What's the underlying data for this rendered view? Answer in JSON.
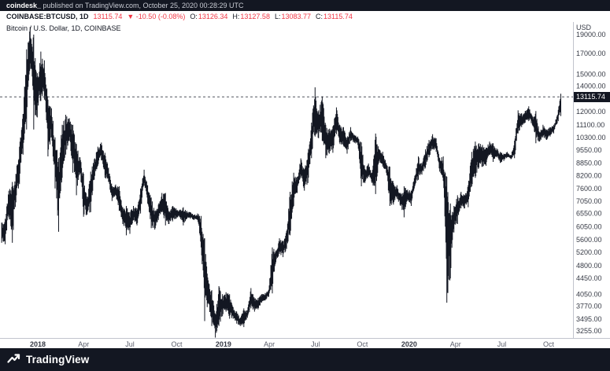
{
  "attribution_bar": {
    "username": "coindesk_",
    "text": " published on TradingView.com, October 25, 2020 00:28:29 UTC"
  },
  "symbol_bar": {
    "symbol": "COINBASE:BTCUSD, 1D",
    "last_price": "13115.74",
    "change": "▼ -10.50 (-0.08%)",
    "ohlc": [
      {
        "label": "O:",
        "value": "13126.34"
      },
      {
        "label": "H:",
        "value": "13127.58"
      },
      {
        "label": "L:",
        "value": "13083.77"
      },
      {
        "label": "C:",
        "value": "13115.74"
      }
    ]
  },
  "chart": {
    "legend": "Bitcoin / U.S. Dollar, 1D, COINBASE",
    "axis_unit": "USD",
    "price_badge": "13115.74",
    "colors": {
      "bars": "#131722",
      "down_red": "#f23645",
      "badge_bg": "#131722",
      "axis_text": "#363a45",
      "dashed_line": "#50535e",
      "dark_bar_bg": "#131722"
    }
  },
  "footer": {
    "brand": "TradingView"
  },
  "chart_data": {
    "type": "bar",
    "title": "Bitcoin / U.S. Dollar, 1D, COINBASE",
    "scale": "log",
    "last_price": 13115.74,
    "ylim": [
      3104,
      20585
    ],
    "grid": false,
    "y_ticks": [
      19000,
      17000,
      15000,
      14000,
      13000,
      12000,
      11100,
      10300,
      9550,
      8850,
      8200,
      7600,
      7050,
      6550,
      6050,
      5600,
      5200,
      4800,
      4450,
      4050,
      3770,
      3495,
      3255
    ],
    "x_ticks": [
      {
        "label": "2018",
        "day": 0,
        "year": true
      },
      {
        "label": "Apr",
        "day": 90
      },
      {
        "label": "Jul",
        "day": 181
      },
      {
        "label": "Oct",
        "day": 273
      },
      {
        "label": "2019",
        "day": 365,
        "year": true
      },
      {
        "label": "Apr",
        "day": 455
      },
      {
        "label": "Jul",
        "day": 546
      },
      {
        "label": "Oct",
        "day": 638
      },
      {
        "label": "2020",
        "day": 730,
        "year": true
      },
      {
        "label": "Apr",
        "day": 821
      },
      {
        "label": "Jul",
        "day": 912
      },
      {
        "label": "Oct",
        "day": 1004
      }
    ],
    "start_day": -71,
    "step_days": 7,
    "weekly_high_low": [
      [
        6200,
        5500
      ],
      [
        6350,
        5450
      ],
      [
        7500,
        6400
      ],
      [
        7900,
        5500
      ],
      [
        8300,
        7000
      ],
      [
        9750,
        7800
      ],
      [
        11850,
        9300
      ],
      [
        17400,
        10800
      ],
      [
        19891,
        16000
      ],
      [
        19000,
        10800
      ],
      [
        15100,
        11600
      ],
      [
        17176,
        12800
      ],
      [
        16300,
        12900
      ],
      [
        12900,
        9200
      ],
      [
        12250,
        10300
      ],
      [
        10300,
        7600
      ],
      [
        9100,
        5873
      ],
      [
        11100,
        8100
      ],
      [
        11790,
        9300
      ],
      [
        11550,
        10100
      ],
      [
        11100,
        8350
      ],
      [
        9900,
        7300
      ],
      [
        9150,
        8300
      ],
      [
        8300,
        6425
      ],
      [
        7150,
        6500
      ],
      [
        8400,
        6600
      ],
      [
        9050,
        8000
      ],
      [
        9750,
        8700
      ],
      [
        9990,
        9000
      ],
      [
        9400,
        8100
      ],
      [
        8600,
        7900
      ],
      [
        7700,
        7050
      ],
      [
        7780,
        7300
      ],
      [
        7700,
        6650
      ],
      [
        6800,
        6150
      ],
      [
        6850,
        5750
      ],
      [
        6600,
        5800
      ],
      [
        6850,
        6300
      ],
      [
        6750,
        6100
      ],
      [
        7600,
        6550
      ],
      [
        8500,
        7850
      ],
      [
        7750,
        6950
      ],
      [
        7200,
        6000
      ],
      [
        6650,
        5950
      ],
      [
        6900,
        6300
      ],
      [
        7400,
        6600
      ],
      [
        7400,
        6100
      ],
      [
        6600,
        6150
      ],
      [
        6850,
        6250
      ],
      [
        6750,
        6350
      ],
      [
        6700,
        6400
      ],
      [
        6800,
        6100
      ],
      [
        6650,
        6350
      ],
      [
        6600,
        6350
      ],
      [
        6500,
        6300
      ],
      [
        6550,
        6300
      ],
      [
        6450,
        5350
      ],
      [
        5650,
        3450
      ],
      [
        4400,
        3850
      ],
      [
        4150,
        3350
      ],
      [
        3600,
        3128
      ],
      [
        4250,
        3350
      ],
      [
        4050,
        3550
      ],
      [
        4100,
        3650
      ],
      [
        4050,
        3500
      ],
      [
        3750,
        3500
      ],
      [
        3650,
        3400
      ],
      [
        3520,
        3350
      ],
      [
        3720,
        3330
      ],
      [
        3680,
        3520
      ],
      [
        4200,
        3720
      ],
      [
        3950,
        3650
      ],
      [
        3960,
        3700
      ],
      [
        4050,
        3850
      ],
      [
        4080,
        3900
      ],
      [
        4160,
        3990
      ],
      [
        5350,
        4070
      ],
      [
        5250,
        4900
      ],
      [
        5650,
        5150
      ],
      [
        5550,
        5050
      ],
      [
        5900,
        5300
      ],
      [
        7450,
        5750
      ],
      [
        8350,
        6850
      ],
      [
        8150,
        7400
      ],
      [
        9090,
        8100
      ],
      [
        8500,
        7500
      ],
      [
        9400,
        7850
      ],
      [
        11250,
        9100
      ],
      [
        13880,
        10350
      ],
      [
        12100,
        10250
      ],
      [
        13150,
        10100
      ],
      [
        11100,
        9100
      ],
      [
        10850,
        9350
      ],
      [
        11000,
        9400
      ],
      [
        12320,
        10500
      ],
      [
        11070,
        9900
      ],
      [
        10950,
        9800
      ],
      [
        10280,
        9350
      ],
      [
        10950,
        10080
      ],
      [
        10460,
        10000
      ],
      [
        10350,
        9850
      ],
      [
        10000,
        7700
      ],
      [
        8530,
        7850
      ],
      [
        8820,
        8150
      ],
      [
        8350,
        7850
      ],
      [
        10540,
        7350
      ],
      [
        9600,
        8950
      ],
      [
        9460,
        8650
      ],
      [
        8850,
        8350
      ],
      [
        8650,
        6850
      ],
      [
        7850,
        6900
      ],
      [
        7750,
        7150
      ],
      [
        7400,
        6850
      ],
      [
        7700,
        6400
      ],
      [
        7550,
        7050
      ],
      [
        7500,
        6850
      ],
      [
        8200,
        7700
      ],
      [
        9200,
        8000
      ],
      [
        8850,
        8250
      ],
      [
        9600,
        8600
      ],
      [
        10150,
        9150
      ],
      [
        10500,
        9600
      ],
      [
        10250,
        9450
      ],
      [
        9100,
        8400
      ],
      [
        9200,
        7950
      ],
      [
        8150,
        3850
      ],
      [
        6950,
        4450
      ],
      [
        6850,
        5850
      ],
      [
        7300,
        6150
      ],
      [
        7450,
        6750
      ],
      [
        7300,
        6750
      ],
      [
        7750,
        6800
      ],
      [
        9450,
        7700
      ],
      [
        10050,
        8100
      ],
      [
        9950,
        8600
      ],
      [
        9850,
        8650
      ],
      [
        9700,
        8700
      ],
      [
        10050,
        9300
      ],
      [
        9950,
        8900
      ],
      [
        9650,
        9150
      ],
      [
        9450,
        8850
      ],
      [
        9350,
        8950
      ],
      [
        9450,
        9150
      ],
      [
        9250,
        9050
      ],
      [
        10100,
        9100
      ],
      [
        12100,
        10550
      ],
      [
        11900,
        10950
      ],
      [
        12050,
        11250
      ],
      [
        12400,
        11350
      ],
      [
        11700,
        11100
      ],
      [
        12050,
        9950
      ],
      [
        10600,
        10050
      ],
      [
        11100,
        10300
      ],
      [
        10800,
        10150
      ],
      [
        10950,
        10350
      ],
      [
        11100,
        10550
      ],
      [
        11750,
        11200
      ],
      [
        13360,
        11700
      ]
    ]
  }
}
